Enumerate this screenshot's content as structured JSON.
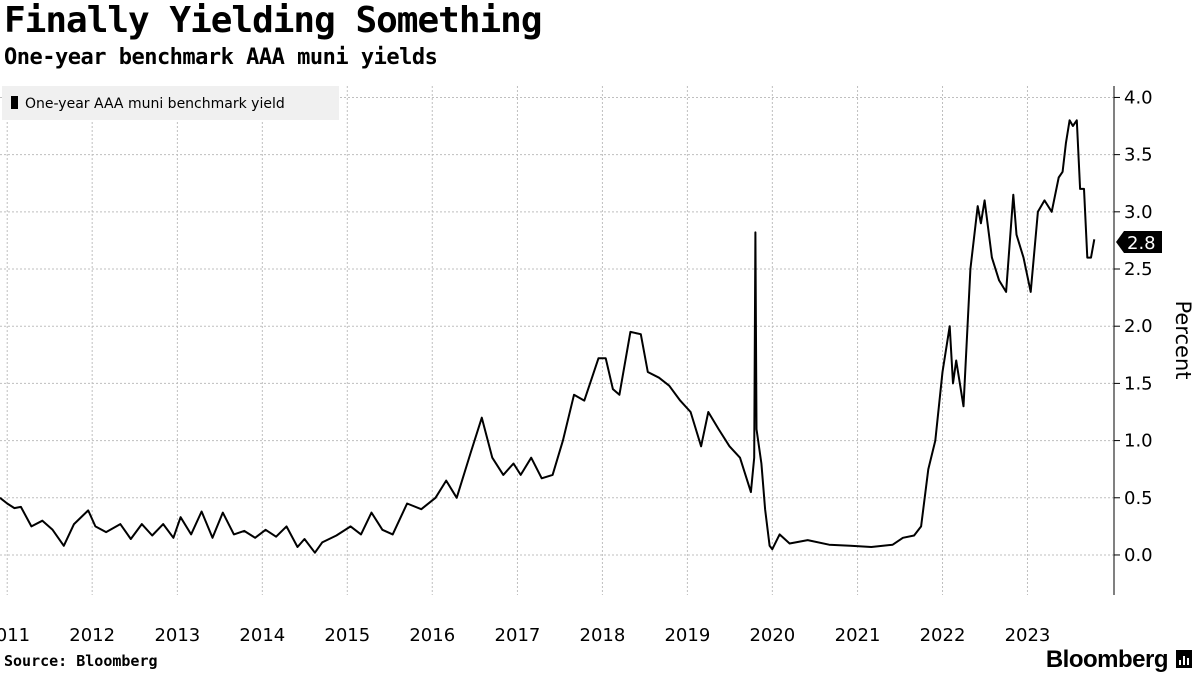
{
  "header": {
    "title": "Finally Yielding Something",
    "subtitle": "One-year benchmark AAA muni yields"
  },
  "footer": {
    "source": "Source: Bloomberg",
    "brand": "Bloomberg"
  },
  "colors": {
    "line": "#000000",
    "grid": "#bfbfbf",
    "legend_bg": "#f0f0f0",
    "end_label_bg": "#000000"
  },
  "chart_data": {
    "type": "line",
    "ylabel": "Percent",
    "ylim": [
      -0.35,
      4.1
    ],
    "y_ticks": [
      {
        "value": 0.0,
        "label": "0.0"
      },
      {
        "value": 0.5,
        "label": "0.5"
      },
      {
        "value": 1.0,
        "label": "1.0"
      },
      {
        "value": 1.5,
        "label": "1.5"
      },
      {
        "value": 2.0,
        "label": "2.0"
      },
      {
        "value": 2.5,
        "label": "2.5"
      },
      {
        "value": 3.0,
        "label": "3.0"
      },
      {
        "value": 3.5,
        "label": "3.5"
      },
      {
        "value": 4.0,
        "label": "4.0"
      }
    ],
    "x_range": [
      "2010-12-01",
      "2023-10-31"
    ],
    "x_ticks": [
      {
        "date": "2011-01-01",
        "label": "2011"
      },
      {
        "date": "2012-01-01",
        "label": "2012"
      },
      {
        "date": "2013-01-01",
        "label": "2013"
      },
      {
        "date": "2014-01-01",
        "label": "2014"
      },
      {
        "date": "2015-01-01",
        "label": "2015"
      },
      {
        "date": "2016-01-01",
        "label": "2016"
      },
      {
        "date": "2017-01-01",
        "label": "2017"
      },
      {
        "date": "2018-01-01",
        "label": "2018"
      },
      {
        "date": "2019-01-01",
        "label": "2019"
      },
      {
        "date": "2020-01-01",
        "label": "2020"
      },
      {
        "date": "2021-01-01",
        "label": "2021"
      },
      {
        "date": "2022-01-01",
        "label": "2022"
      },
      {
        "date": "2023-01-01",
        "label": "2023"
      }
    ],
    "grid": true,
    "legend_position": "top-left",
    "end_value_label": "2.8",
    "series": [
      {
        "name": "One-year AAA muni benchmark yield",
        "points": [
          [
            "2010-12-01",
            0.5
          ],
          [
            "2011-01-01",
            0.45
          ],
          [
            "2011-02-01",
            0.41
          ],
          [
            "2011-03-01",
            0.42
          ],
          [
            "2011-04-15",
            0.25
          ],
          [
            "2011-06-01",
            0.3
          ],
          [
            "2011-07-15",
            0.22
          ],
          [
            "2011-09-01",
            0.08
          ],
          [
            "2011-10-15",
            0.27
          ],
          [
            "2011-12-15",
            0.39
          ],
          [
            "2012-01-15",
            0.25
          ],
          [
            "2012-03-01",
            0.2
          ],
          [
            "2012-05-01",
            0.27
          ],
          [
            "2012-06-15",
            0.14
          ],
          [
            "2012-08-01",
            0.27
          ],
          [
            "2012-09-15",
            0.17
          ],
          [
            "2012-11-01",
            0.27
          ],
          [
            "2012-12-15",
            0.15
          ],
          [
            "2013-01-15",
            0.33
          ],
          [
            "2013-03-01",
            0.18
          ],
          [
            "2013-04-15",
            0.38
          ],
          [
            "2013-06-01",
            0.15
          ],
          [
            "2013-07-15",
            0.37
          ],
          [
            "2013-09-01",
            0.18
          ],
          [
            "2013-10-15",
            0.21
          ],
          [
            "2013-12-01",
            0.15
          ],
          [
            "2014-01-15",
            0.22
          ],
          [
            "2014-03-01",
            0.16
          ],
          [
            "2014-04-15",
            0.25
          ],
          [
            "2014-06-01",
            0.07
          ],
          [
            "2014-07-01",
            0.14
          ],
          [
            "2014-08-15",
            0.02
          ],
          [
            "2014-09-15",
            0.11
          ],
          [
            "2014-11-15",
            0.17
          ],
          [
            "2015-01-15",
            0.25
          ],
          [
            "2015-03-01",
            0.18
          ],
          [
            "2015-04-15",
            0.37
          ],
          [
            "2015-06-01",
            0.22
          ],
          [
            "2015-07-15",
            0.18
          ],
          [
            "2015-09-15",
            0.45
          ],
          [
            "2015-11-15",
            0.4
          ],
          [
            "2016-01-15",
            0.5
          ],
          [
            "2016-03-01",
            0.65
          ],
          [
            "2016-04-15",
            0.5
          ],
          [
            "2016-06-15",
            0.9
          ],
          [
            "2016-08-01",
            1.2
          ],
          [
            "2016-09-15",
            0.85
          ],
          [
            "2016-11-01",
            0.7
          ],
          [
            "2016-12-15",
            0.8
          ],
          [
            "2017-01-15",
            0.7
          ],
          [
            "2017-03-01",
            0.85
          ],
          [
            "2017-04-15",
            0.67
          ],
          [
            "2017-06-01",
            0.7
          ],
          [
            "2017-07-15",
            1.0
          ],
          [
            "2017-09-01",
            1.4
          ],
          [
            "2017-10-15",
            1.35
          ],
          [
            "2017-12-15",
            1.72
          ],
          [
            "2018-01-15",
            1.72
          ],
          [
            "2018-02-15",
            1.45
          ],
          [
            "2018-03-15",
            1.4
          ],
          [
            "2018-05-01",
            1.95
          ],
          [
            "2018-06-15",
            1.93
          ],
          [
            "2018-07-15",
            1.6
          ],
          [
            "2018-09-01",
            1.55
          ],
          [
            "2018-10-15",
            1.48
          ],
          [
            "2018-12-01",
            1.35
          ],
          [
            "2019-01-15",
            1.25
          ],
          [
            "2019-03-01",
            0.95
          ],
          [
            "2019-04-01",
            1.25
          ],
          [
            "2019-05-15",
            1.1
          ],
          [
            "2019-07-01",
            0.95
          ],
          [
            "2019-08-15",
            0.85
          ],
          [
            "2019-10-01",
            0.55
          ],
          [
            "2019-10-15",
            0.85
          ],
          [
            "2019-10-20",
            2.82
          ],
          [
            "2019-10-25",
            1.1
          ],
          [
            "2019-11-15",
            0.8
          ],
          [
            "2019-12-01",
            0.4
          ],
          [
            "2019-12-20",
            0.08
          ],
          [
            "2020-01-01",
            0.05
          ],
          [
            "2020-02-01",
            0.18
          ],
          [
            "2020-03-15",
            0.1
          ],
          [
            "2020-06-01",
            0.13
          ],
          [
            "2020-09-01",
            0.09
          ],
          [
            "2020-12-01",
            0.08
          ],
          [
            "2021-03-01",
            0.07
          ],
          [
            "2021-06-01",
            0.09
          ],
          [
            "2021-07-15",
            0.15
          ],
          [
            "2021-09-01",
            0.17
          ],
          [
            "2021-10-01",
            0.25
          ],
          [
            "2021-11-01",
            0.75
          ],
          [
            "2021-12-01",
            1.0
          ],
          [
            "2022-01-01",
            1.6
          ],
          [
            "2022-02-01",
            2.0
          ],
          [
            "2022-02-15",
            1.5
          ],
          [
            "2022-03-01",
            1.7
          ],
          [
            "2022-04-01",
            1.3
          ],
          [
            "2022-05-01",
            2.5
          ],
          [
            "2022-06-01",
            3.05
          ],
          [
            "2022-06-15",
            2.9
          ],
          [
            "2022-07-01",
            3.1
          ],
          [
            "2022-08-01",
            2.6
          ],
          [
            "2022-09-01",
            2.4
          ],
          [
            "2022-10-01",
            2.3
          ],
          [
            "2022-11-01",
            3.15
          ],
          [
            "2022-11-15",
            2.8
          ],
          [
            "2022-12-15",
            2.6
          ],
          [
            "2023-01-15",
            2.3
          ],
          [
            "2023-02-15",
            3.0
          ],
          [
            "2023-03-15",
            3.1
          ],
          [
            "2023-04-15",
            3.0
          ],
          [
            "2023-05-15",
            3.3
          ],
          [
            "2023-06-01",
            3.35
          ],
          [
            "2023-06-15",
            3.6
          ],
          [
            "2023-07-01",
            3.8
          ],
          [
            "2023-07-15",
            3.75
          ],
          [
            "2023-08-01",
            3.8
          ],
          [
            "2023-08-15",
            3.2
          ],
          [
            "2023-09-01",
            3.2
          ],
          [
            "2023-09-15",
            2.6
          ],
          [
            "2023-10-01",
            2.6
          ],
          [
            "2023-10-15",
            2.76
          ]
        ]
      }
    ]
  }
}
